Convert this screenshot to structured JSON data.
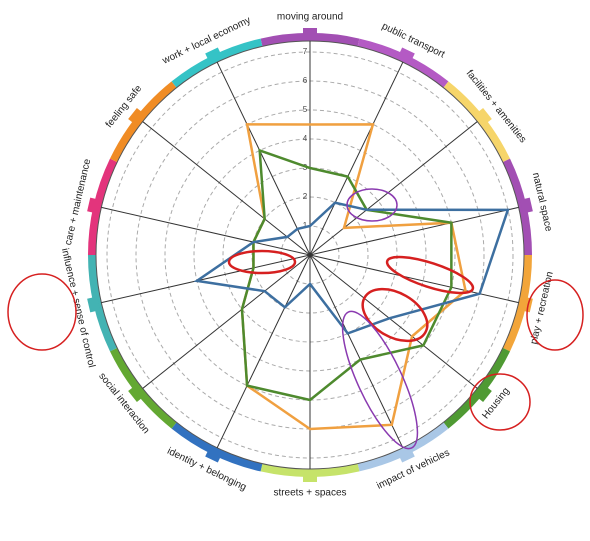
{
  "chart_data": {
    "type": "radar",
    "categories": [
      "moving around",
      "public transport",
      "facilities + amenities",
      "natural space",
      "play + recreation",
      "Housing",
      "impact of vehicles",
      "streets + spaces",
      "identity + belonging",
      "social interaction",
      "influence + sense of control",
      "care + maintenance",
      "feeling safe",
      "work + local economy"
    ],
    "category_colors": [
      "#a24fb3",
      "#b45ac4",
      "#f6d56a",
      "#a24fb3",
      "#f2a53a",
      "#4f9a33",
      "#a9c7e6",
      "#c6e36a",
      "#3272c0",
      "#63a832",
      "#43b3b3",
      "#e3347c",
      "#f08c25",
      "#35c3c6"
    ],
    "ylim": [
      0,
      7
    ],
    "yticks": [
      1,
      2,
      3,
      4,
      5,
      6,
      7
    ],
    "grid": true,
    "series": [
      {
        "name": "orange",
        "color": "#f0a040",
        "values": [
          4.5,
          5,
          1.5,
          5,
          5.5,
          4.5,
          6.5,
          6,
          5,
          3,
          2,
          2,
          2,
          5
        ]
      },
      {
        "name": "green",
        "color": "#4e8a2e",
        "values": [
          3,
          3,
          2.5,
          5,
          5,
          5,
          4,
          5,
          5,
          3,
          2,
          2,
          2,
          4
        ]
      },
      {
        "name": "blue",
        "color": "#3d6fa0",
        "values": [
          1,
          2,
          2.5,
          7,
          6,
          3.5,
          3,
          1,
          2,
          2,
          4,
          2,
          1,
          1
        ]
      }
    ]
  }
}
